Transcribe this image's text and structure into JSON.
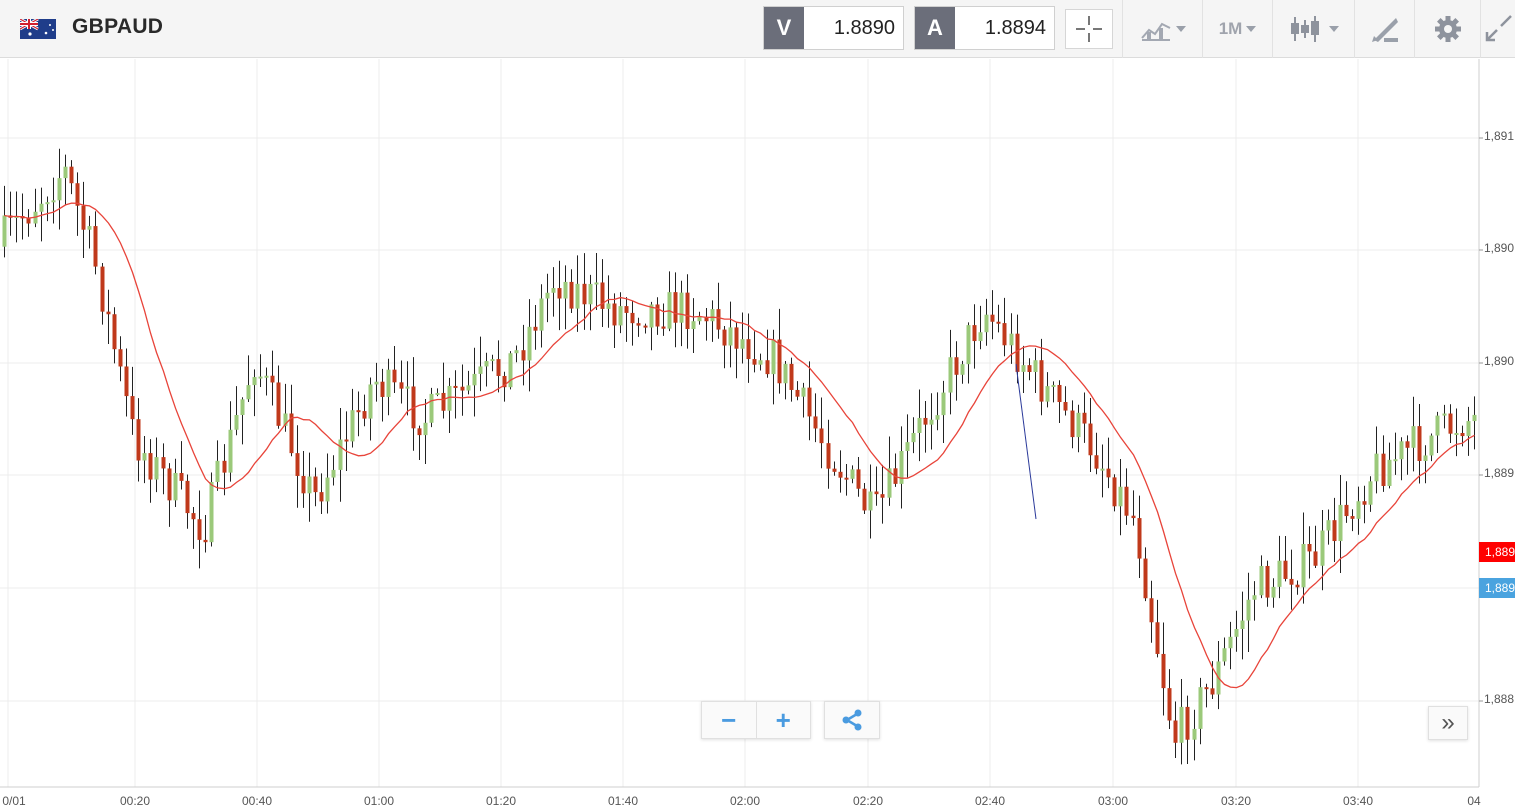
{
  "header": {
    "symbol": "GBPAUD",
    "bid": {
      "tag": "V",
      "value": "1.8890"
    },
    "ask": {
      "tag": "A",
      "value": "1.8894"
    },
    "tools": [
      {
        "name": "crosshair-icon"
      },
      {
        "name": "chart-type-icon"
      },
      {
        "name": "timeframe",
        "label": "1M"
      },
      {
        "name": "indicators-icon"
      },
      {
        "name": "drawing-tools-icon"
      },
      {
        "name": "gear-icon"
      },
      {
        "name": "fullscreen-icon"
      }
    ]
  },
  "chart_data": {
    "type": "candlestick",
    "symbol": "GBPAUD",
    "timeframe": "1M",
    "y_tick_labels": [
      "1,891",
      "1,890",
      "1,890",
      "1,889",
      "1,889",
      "1,888"
    ],
    "x_tick_labels": [
      "0/01",
      "00:20",
      "00:40",
      "01:00",
      "01:20",
      "01:40",
      "02:00",
      "02:20",
      "02:40",
      "03:00",
      "03:20",
      "03:40",
      "04"
    ],
    "price_tags": [
      {
        "label": "1,889",
        "color": "#ff0000"
      },
      {
        "label": "1,889",
        "color": "#4aa3df"
      }
    ],
    "up_color": "#9bc97a",
    "down_color": "#c0391b",
    "ma_color": "#e8443a",
    "grid": true
  },
  "controls": {
    "zoom_out": "−",
    "zoom_in": "+",
    "scroll_right": "»"
  }
}
